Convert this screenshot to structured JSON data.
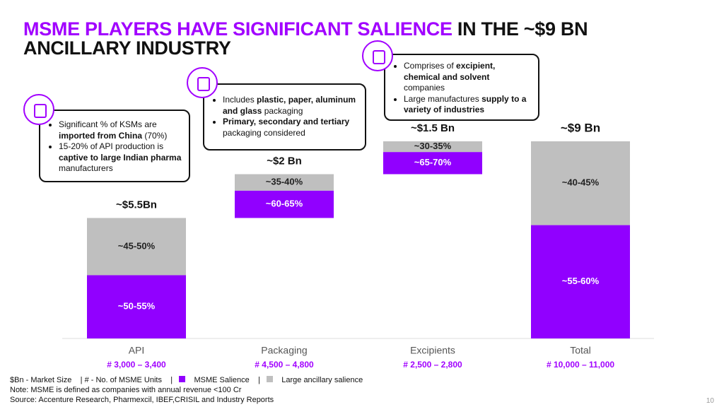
{
  "chart_data": {
    "type": "waterfall",
    "title_highlight": "MSME PLAYERS HAVE SIGNIFICANT SALIENCE",
    "title_rest": "IN THE ~$9 BN",
    "title_line2": "ANCILLARY INDUSTRY",
    "categories": [
      "API",
      "Packaging",
      "Excipients",
      "Total"
    ],
    "sublabels": [
      "# 3,000 – 3,400",
      "# 4,500 – 4,800",
      "# 2,500 – 2,800",
      "# 10,000 – 11,000"
    ],
    "values": [
      5.5,
      2,
      1.5,
      9
    ],
    "value_labels": [
      "~$5.5Bn",
      "~$2 Bn",
      "~$1.5 Bn",
      "~$9 Bn"
    ],
    "series": [
      {
        "name": "MSME Salience",
        "color": "#9100ff",
        "values": [
          50,
          60,
          65,
          55
        ],
        "values_high": [
          55,
          65,
          70,
          60
        ],
        "value_labels": [
          "~50-55%",
          "~60-65%",
          "~65-70%",
          "~55-60%"
        ]
      },
      {
        "name": "Large ancillary salience",
        "color": "#bfbfbf",
        "values": [
          45,
          35,
          30,
          40
        ],
        "values_high": [
          50,
          40,
          35,
          45
        ],
        "value_labels": [
          "~45-50%",
          "~35-40%",
          "~30-35%",
          "~40-45%"
        ]
      }
    ],
    "callouts": [
      {
        "items": [
          [
            {
              "text": "Significant % of KSMs are ",
              "bold": false
            },
            {
              "text": "imported from China",
              "bold": true
            },
            {
              "text": " (70%)",
              "bold": false
            }
          ],
          [
            {
              "text": "15-20% of API production is ",
              "bold": false
            },
            {
              "text": "captive to large Indian pharma",
              "bold": true
            },
            {
              "text": " manufacturers",
              "bold": false
            }
          ]
        ]
      },
      {
        "items": [
          [
            {
              "text": "Includes ",
              "bold": false
            },
            {
              "text": "plastic, paper, aluminum and glass",
              "bold": true
            },
            {
              "text": " packaging",
              "bold": false
            }
          ],
          [
            {
              "text": "Primary, secondary and tertiary",
              "bold": true
            },
            {
              "text": " packaging considered",
              "bold": false
            }
          ]
        ]
      },
      {
        "items": [
          [
            {
              "text": "Comprises of ",
              "bold": false
            },
            {
              "text": "excipient, chemical and solvent",
              "bold": true
            },
            {
              "text": " companies",
              "bold": false
            }
          ],
          [
            {
              "text": "Large manufactures ",
              "bold": false
            },
            {
              "text": "supply to a variety of industries",
              "bold": true
            }
          ]
        ]
      }
    ],
    "footer": {
      "key_market": "$Bn - Market Size",
      "key_units": "# - No. of MSME Units",
      "note": "Note: MSME is defined as companies with annual revenue <100 Cr",
      "source": "Source: Accenture Research, Pharmexcil, IBEF,CRISIL and Industry Reports",
      "page": "10"
    }
  }
}
